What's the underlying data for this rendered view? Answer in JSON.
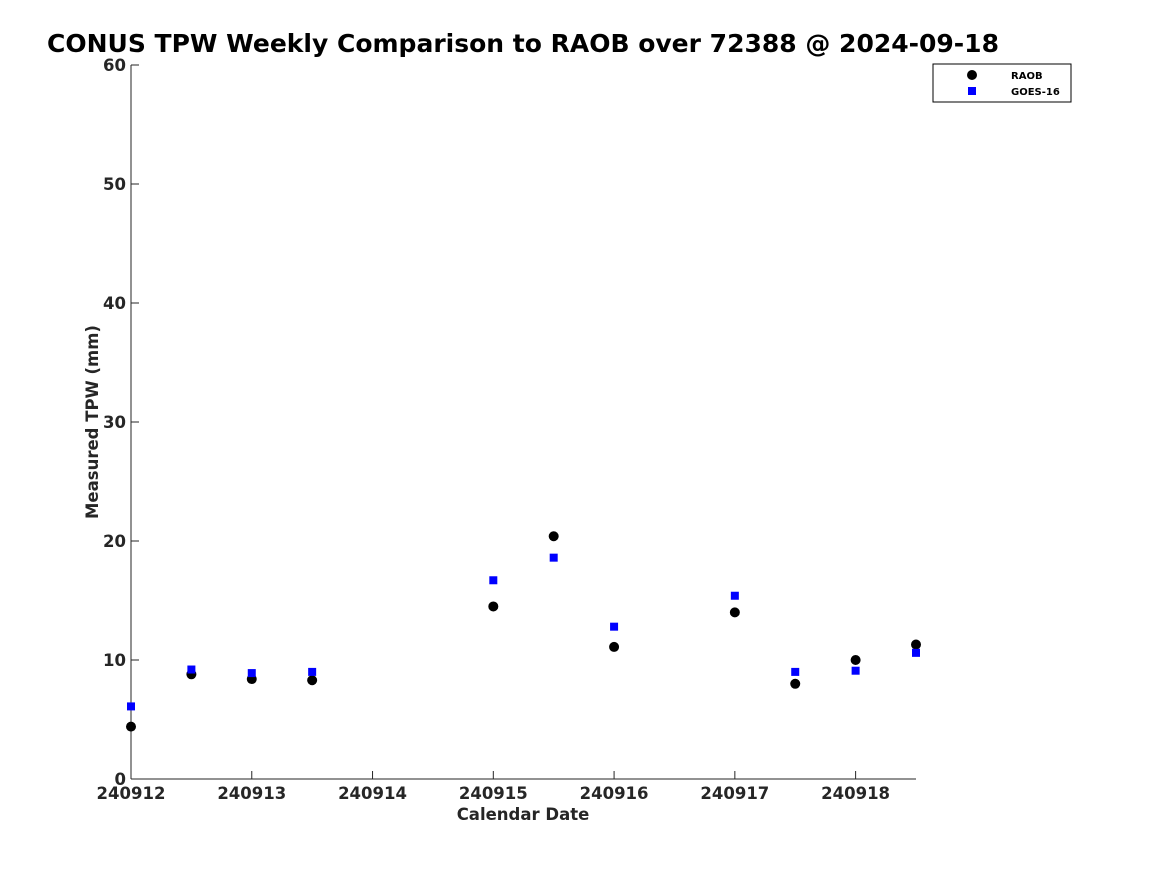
{
  "chart_data": {
    "type": "scatter",
    "title": "CONUS TPW Weekly Comparison to RAOB over 72388 @ 2024-09-18",
    "xlabel": "Calendar Date",
    "ylabel": "Measured TPW (mm)",
    "xlim": [
      240912,
      240918.5
    ],
    "ylim": [
      0,
      60
    ],
    "x_ticks": [
      240912,
      240913,
      240914,
      240915,
      240916,
      240917,
      240918
    ],
    "x_tick_labels": [
      "240912",
      "240913",
      "240914",
      "240915",
      "240916",
      "240917",
      "240918"
    ],
    "y_ticks": [
      0,
      10,
      20,
      30,
      40,
      50,
      60
    ],
    "y_tick_labels": [
      "0",
      "10",
      "20",
      "30",
      "40",
      "50",
      "60"
    ],
    "grid": false,
    "legend": "top-right",
    "series": [
      {
        "name": "RAOB",
        "marker": "circle",
        "color": "#000000",
        "x": [
          240912,
          240912.5,
          240913,
          240913.5,
          240915,
          240915.5,
          240916,
          240917,
          240917.5,
          240918,
          240918.5
        ],
        "y": [
          4.4,
          8.8,
          8.4,
          8.3,
          14.5,
          20.4,
          11.1,
          14.0,
          8.0,
          10.0,
          11.3
        ]
      },
      {
        "name": "GOES-16",
        "marker": "square",
        "color": "#0000ff",
        "x": [
          240912,
          240912.5,
          240913,
          240913.5,
          240915,
          240915.5,
          240916,
          240917,
          240917.5,
          240918,
          240918.5
        ],
        "y": [
          6.1,
          9.2,
          8.9,
          9.0,
          16.7,
          18.6,
          12.8,
          15.4,
          9.0,
          9.1,
          10.6
        ]
      }
    ]
  }
}
